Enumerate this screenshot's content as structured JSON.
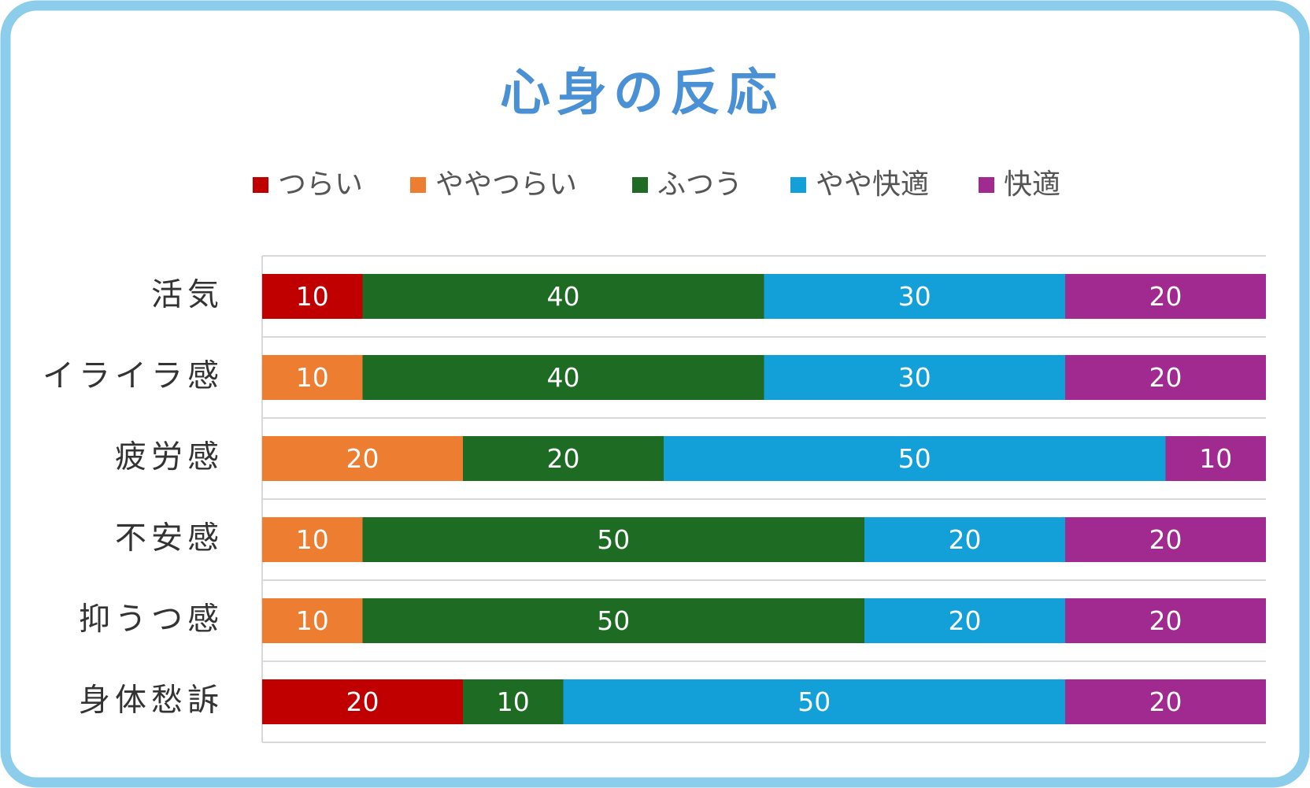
{
  "chart_data": {
    "type": "stacked-bar-horizontal",
    "title": "心身の反応",
    "categories": [
      "活気",
      "イライラ感",
      "疲労感",
      "不安感",
      "抑うつ感",
      "身体愁訴"
    ],
    "series": [
      {
        "name": "つらい",
        "color": "#c00000",
        "values": [
          10,
          0,
          0,
          0,
          0,
          20
        ]
      },
      {
        "name": "ややつらい",
        "color": "#ed7d31",
        "values": [
          0,
          10,
          20,
          10,
          10,
          0
        ]
      },
      {
        "name": "ふつう",
        "color": "#1e6b24",
        "values": [
          40,
          40,
          20,
          50,
          50,
          10
        ]
      },
      {
        "name": "やや快適",
        "color": "#139fd7",
        "values": [
          30,
          30,
          50,
          20,
          20,
          50
        ]
      },
      {
        "name": "快適",
        "color": "#a02a90",
        "values": [
          20,
          20,
          10,
          20,
          20,
          20
        ]
      }
    ],
    "xlim": [
      0,
      100
    ],
    "grid": true,
    "legend": "top"
  }
}
